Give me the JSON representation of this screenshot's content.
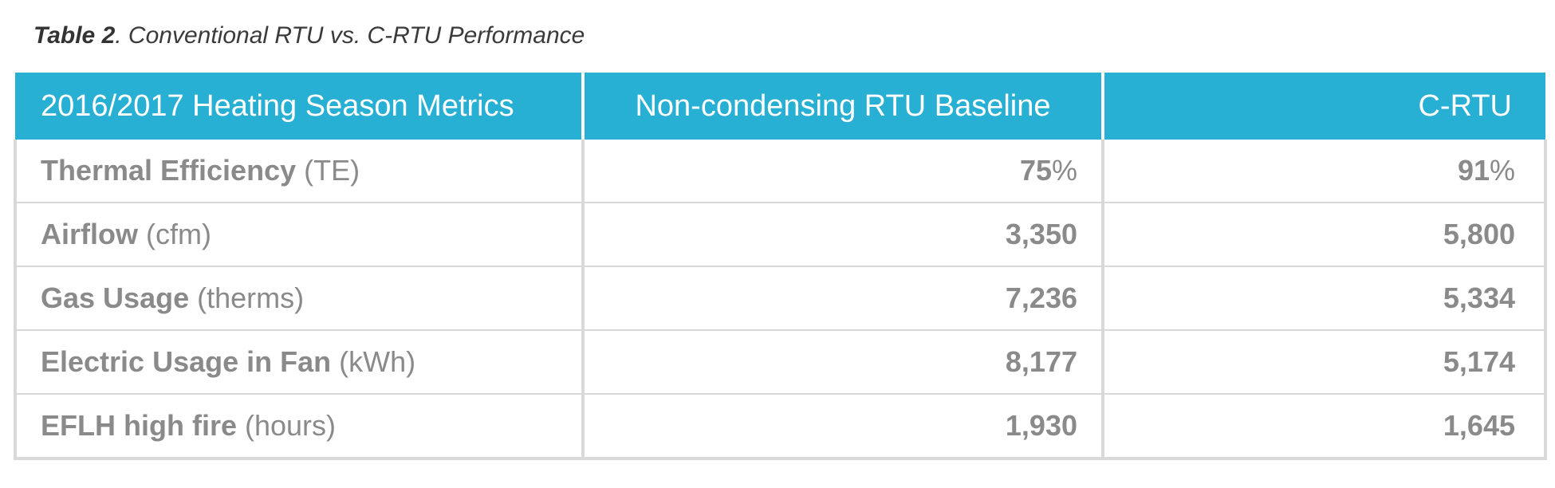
{
  "caption": {
    "label": "Table 2",
    "text": ". Conventional RTU vs. C-RTU Performance"
  },
  "colors": {
    "header_bg": "#27afd4",
    "header_text": "#ffffff",
    "cell_text": "#8a8a8a",
    "grid": "#d9d9d9"
  },
  "table": {
    "headers": [
      "2016/2017 Heating Season Metrics",
      "Non-condensing RTU Baseline",
      "C-RTU"
    ],
    "rows": [
      {
        "metric": "Thermal Efficiency",
        "unit": " (TE)",
        "baseline": "75",
        "baseline_suffix": "%",
        "crtu": "91",
        "crtu_suffix": "%"
      },
      {
        "metric": "Airflow",
        "unit": " (cfm)",
        "baseline": "3,350",
        "baseline_suffix": "",
        "crtu": "5,800",
        "crtu_suffix": ""
      },
      {
        "metric": "Gas Usage",
        "unit": " (therms)",
        "baseline": "7,236",
        "baseline_suffix": "",
        "crtu": "5,334",
        "crtu_suffix": ""
      },
      {
        "metric": "Electric Usage in Fan",
        "unit": " (kWh)",
        "baseline": "8,177",
        "baseline_suffix": "",
        "crtu": "5,174",
        "crtu_suffix": ""
      },
      {
        "metric": "EFLH high fire",
        "unit": " (hours)",
        "baseline": "1,930",
        "baseline_suffix": "",
        "crtu": "1,645",
        "crtu_suffix": ""
      }
    ]
  }
}
